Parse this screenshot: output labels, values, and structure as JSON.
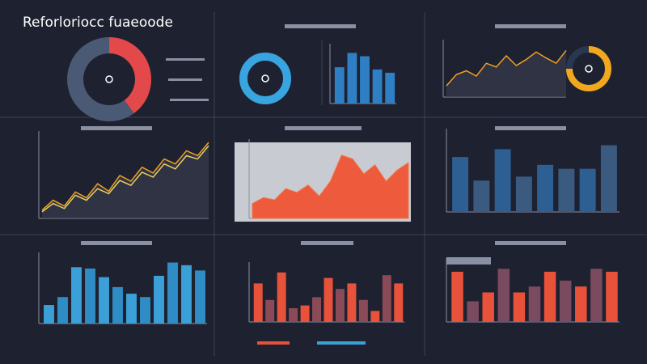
{
  "title": "Reforloriocc fuaeoode",
  "chart_data": [
    {
      "type": "pie",
      "values": [
        40,
        60
      ],
      "colors": [
        "#e3484a",
        "#4a5a74"
      ]
    },
    {
      "type": "pie",
      "values": [
        100
      ],
      "colors": [
        "#38a4e0"
      ]
    },
    {
      "type": "bar",
      "values": [
        33,
        46,
        43,
        31,
        28
      ],
      "colors": [
        "#2f7fc4"
      ],
      "ylim": [
        0,
        50
      ]
    },
    {
      "type": "line",
      "series": [
        {
          "color": "#f0a020",
          "values": [
            15,
            30,
            35,
            28,
            45,
            40,
            55,
            42,
            50,
            60,
            52,
            45,
            62
          ]
        }
      ],
      "ylim": [
        0,
        70
      ]
    },
    {
      "type": "pie",
      "values": [
        75,
        25
      ],
      "colors": [
        "#f2a81e",
        "#2a3750"
      ]
    },
    {
      "type": "line",
      "series": [
        {
          "color": "#f0a020",
          "values": [
            10,
            22,
            15,
            32,
            25,
            42,
            33,
            52,
            45,
            62,
            55,
            72,
            66,
            82,
            76,
            92
          ]
        },
        {
          "color": "#e8d060",
          "values": [
            8,
            18,
            12,
            28,
            22,
            36,
            30,
            46,
            40,
            56,
            50,
            66,
            60,
            76,
            72,
            88
          ]
        }
      ],
      "ylim": [
        0,
        100
      ]
    },
    {
      "type": "area",
      "series": [
        {
          "color": "#ee5a3c",
          "values": [
            20,
            28,
            25,
            40,
            35,
            45,
            30,
            50,
            85,
            80,
            60,
            72,
            50,
            65,
            75
          ]
        }
      ],
      "ylim": [
        0,
        100
      ]
    },
    {
      "type": "bar",
      "values": [
        70,
        40,
        80,
        45,
        60,
        55,
        55,
        85
      ],
      "colors": [
        "#2e5f92",
        "#3a5a80"
      ],
      "ylim": [
        0,
        100
      ]
    },
    {
      "type": "bar",
      "values": [
        28,
        40,
        85,
        83,
        70,
        55,
        45,
        40,
        72,
        92,
        88,
        80
      ],
      "colors": [
        "#3b9fd8",
        "#2f8cc4"
      ],
      "ylim": [
        0,
        100
      ]
    },
    {
      "type": "bar",
      "values": [
        70,
        40,
        90,
        25,
        30,
        45,
        80,
        60,
        70,
        40,
        20,
        85,
        70
      ],
      "colors": [
        "#e8513a",
        "#8a4a58"
      ],
      "ylim": [
        0,
        100
      ]
    },
    {
      "type": "bar",
      "values": [
        85,
        35,
        50,
        90,
        50,
        60,
        85,
        70,
        60,
        90,
        85
      ],
      "colors": [
        "#e8513a",
        "#7a4a5e"
      ],
      "ylim": [
        0,
        100
      ]
    }
  ]
}
